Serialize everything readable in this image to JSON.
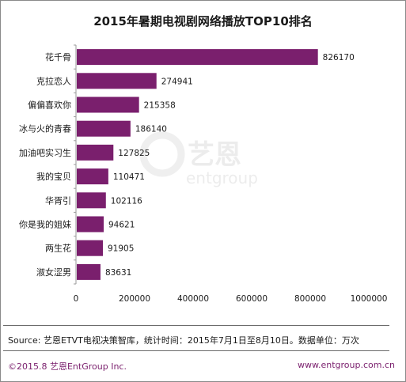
{
  "chart_data": {
    "type": "bar",
    "orientation": "horizontal",
    "title": "2015年暑期电视剧网络播放TOP10排名",
    "categories": [
      "花千骨",
      "克拉恋人",
      "偏偏喜欢你",
      "冰与火的青春",
      "加油吧实习生",
      "我的宝贝",
      "华胥引",
      "你是我的姐妹",
      "两生花",
      "淑女涩男"
    ],
    "values": [
      826170,
      274941,
      215358,
      186140,
      127825,
      110471,
      102116,
      94621,
      91905,
      83631
    ],
    "xlim": [
      0,
      1000000
    ],
    "xticks": [
      0,
      200000,
      400000,
      600000,
      800000,
      1000000
    ],
    "bar_color": "#7a1f6d",
    "grid": false,
    "legend": "none"
  },
  "source": "Source: 艺恩ETVT电视决策智库，统计时间：2015年7月1日至8月10日。数据单位：万次",
  "footer": {
    "left": "©2015.8  艺恩EntGroup Inc.",
    "right": "www.entgroup.com.cn"
  },
  "watermark": {
    "cn": "艺恩",
    "en": "entgroup"
  }
}
